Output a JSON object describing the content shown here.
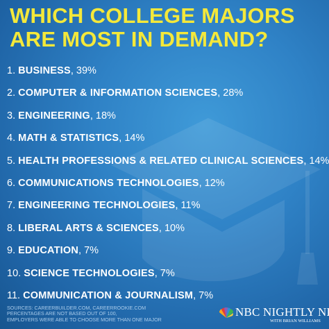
{
  "title": {
    "line1": "WHICH COLLEGE MAJORS",
    "line2": "ARE MOST IN DEMAND?"
  },
  "majors": [
    {
      "num": "1.",
      "name": "BUSINESS",
      "pct": ", 39%"
    },
    {
      "num": "2.",
      "name": "COMPUTER & INFORMATION SCIENCES",
      "pct": ", 28%"
    },
    {
      "num": "3.",
      "name": "ENGINEERING",
      "pct": ", 18%"
    },
    {
      "num": "4.",
      "name": "MATH & STATISTICS",
      "pct": ", 14%"
    },
    {
      "num": "5.",
      "name": "HEALTH PROFESSIONS & RELATED CLINICAL SCIENCES",
      "pct": ", 14%"
    },
    {
      "num": "6.",
      "name": "COMMUNICATIONS TECHNOLOGIES",
      "pct": ", 12%"
    },
    {
      "num": "7.",
      "name": "ENGINEERING TECHNOLOGIES",
      "pct": ", 11%"
    },
    {
      "num": "8.",
      "name": "LIBERAL ARTS & SCIENCES",
      "pct": ", 10%"
    },
    {
      "num": "9.",
      "name": "EDUCATION",
      "pct": ", 7%"
    },
    {
      "num": "10.",
      "name": "SCIENCE TECHNOLOGIES",
      "pct": ", 7%"
    },
    {
      "num": "11.",
      "name": "COMMUNICATION & JOURNALISM",
      "pct": ", 7%"
    }
  ],
  "sources": {
    "line1": "SOURCES: CAREERBUILDER.COM, CAREERROOKIE.COM",
    "line2": "PERCENTAGES ARE NOT BASED OUT OF 100,",
    "line3": "EMPLOYERS WERE ABLE TO CHOOSE MORE THAN ONE MAJOR"
  },
  "logo": {
    "name": "NBC NIGHTLY NEWS",
    "sub": "WITH BRIAN WILLIAMS",
    "icon": "nbc-peacock-icon"
  },
  "colors": {
    "background": "#2f82c6",
    "title": "#f4e83a",
    "text": "#ffffff"
  }
}
